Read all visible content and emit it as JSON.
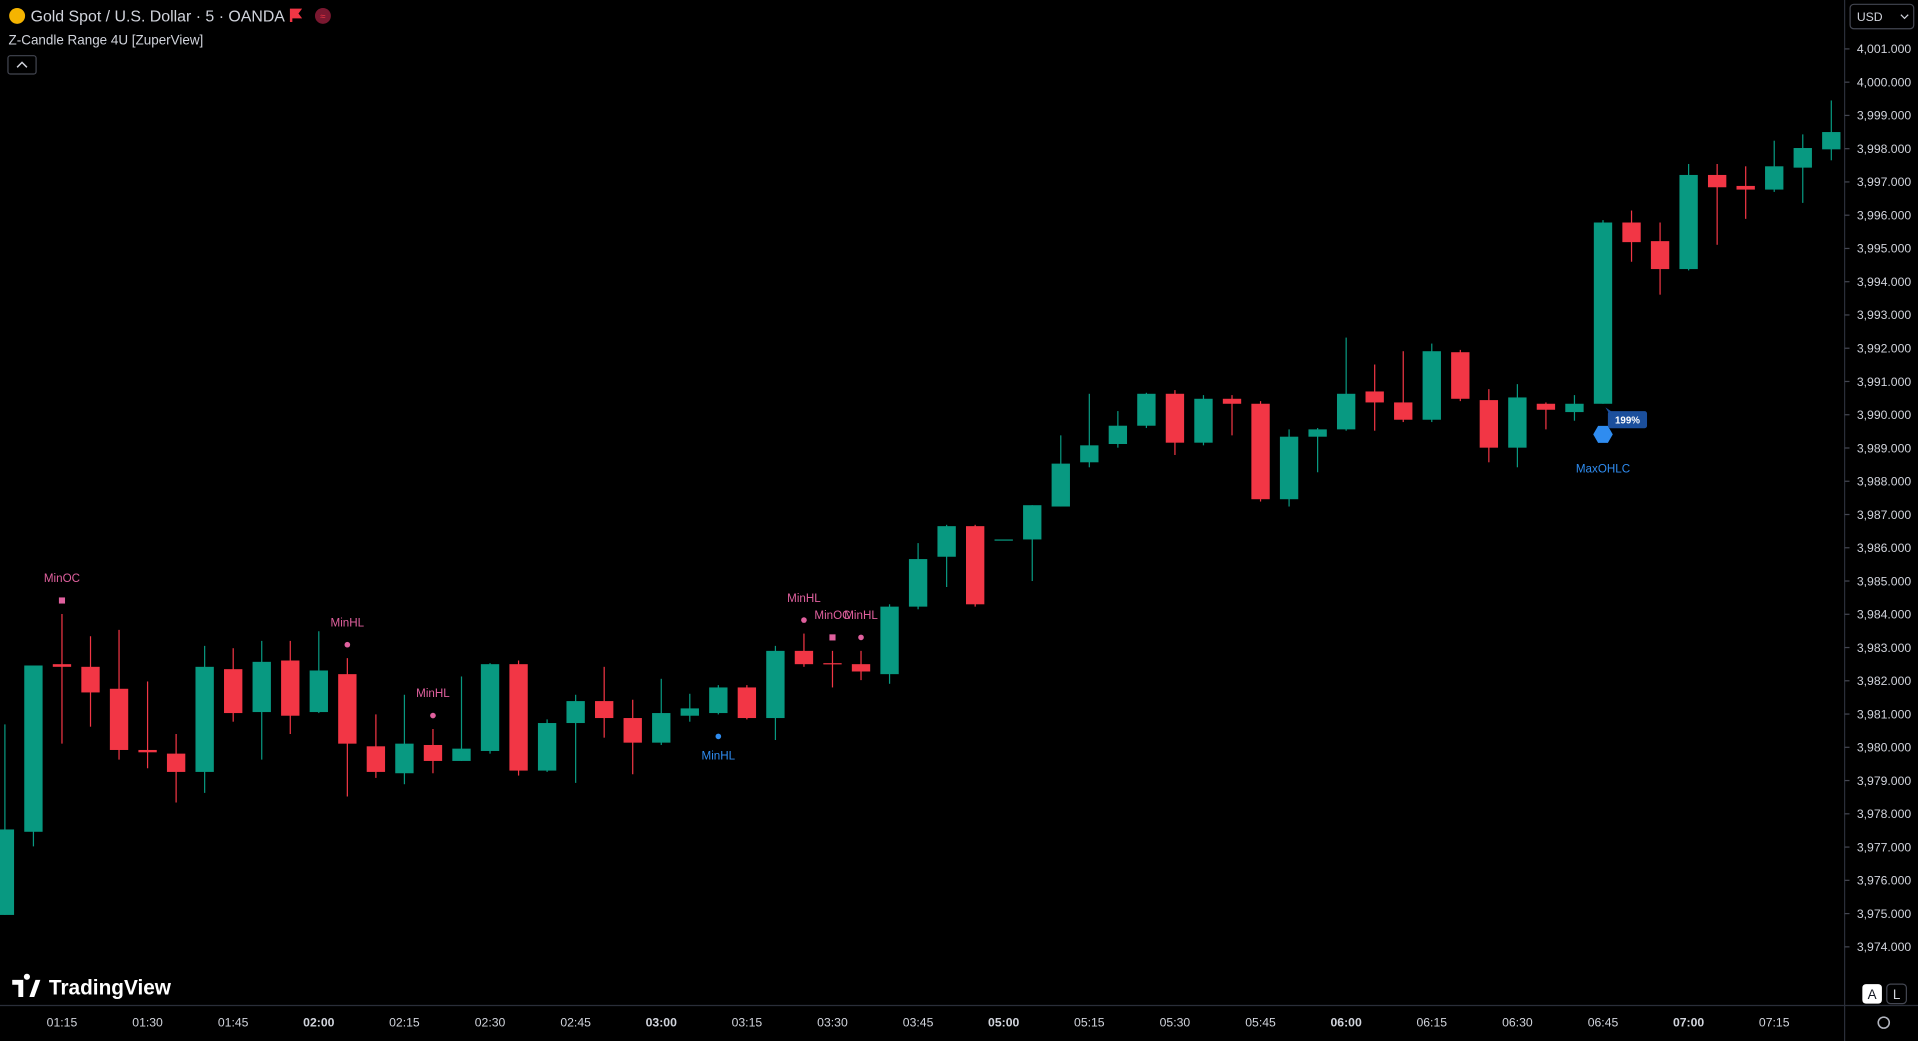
{
  "header": {
    "symbol": "Gold Spot / U.S. Dollar · 5 · OANDA",
    "indicator": "Z-Candle Range 4U [ZuperView]"
  },
  "controls": {
    "currency": "USD",
    "logo": "TradingView",
    "auto_button": "A",
    "log_button": "L"
  },
  "chart_data": {
    "type": "candlestick",
    "up_color": "#089981",
    "down_color": "#f23645",
    "grid": false,
    "categories": [
      null,
      null,
      "01:15",
      null,
      null,
      "01:30",
      null,
      null,
      "01:45",
      null,
      null,
      "02:00",
      null,
      null,
      "02:15",
      null,
      null,
      "02:30",
      null,
      null,
      "02:45",
      null,
      null,
      "03:00",
      null,
      null,
      "03:15",
      null,
      null,
      "03:30",
      null,
      null,
      "03:45",
      null,
      null,
      "05:00",
      null,
      null,
      "05:15",
      null,
      null,
      "05:30",
      null,
      null,
      "05:45",
      null,
      null,
      "06:00",
      null,
      null,
      "06:15",
      null,
      null,
      "06:30",
      null,
      null,
      "06:45",
      null,
      null,
      "07:00",
      null,
      null,
      "07:15",
      null,
      null
    ],
    "open": [
      3974.96,
      3977.46,
      3982.5,
      3982.42,
      3981.76,
      3979.92,
      3979.81,
      3979.26,
      3982.35,
      3981.06,
      3982.61,
      3981.06,
      3982.2,
      3980.03,
      3979.22,
      3980.07,
      3979.59,
      3979.89,
      3982.5,
      3979.3,
      3980.73,
      3981.39,
      3980.88,
      3980.14,
      3980.95,
      3981.03,
      3981.8,
      3980.88,
      3982.9,
      3982.53,
      3982.5,
      3982.2,
      3984.23,
      3985.73,
      3986.65,
      3986.25,
      3986.25,
      3987.24,
      3988.57,
      3989.12,
      3989.67,
      3990.63,
      3989.16,
      3990.48,
      3990.33,
      3987.46,
      3989.34,
      3989.56,
      3990.7,
      3990.37,
      3989.85,
      3991.88,
      3990.44,
      3989.01,
      3990.33,
      3990.08,
      3990.33,
      3995.78,
      3995.22,
      3994.38,
      3997.21,
      3996.88,
      3996.77,
      3997.43,
      3997.98
    ],
    "high": [
      3980.69,
      3982.46,
      3984.01,
      3983.34,
      3983.53,
      3981.98,
      3980.4,
      3983.05,
      3982.98,
      3983.2,
      3983.2,
      3983.49,
      3982.68,
      3980.99,
      3981.58,
      3980.55,
      3982.13,
      3982.53,
      3982.61,
      3980.84,
      3981.58,
      3982.42,
      3981.43,
      3982.06,
      3981.61,
      3981.87,
      3981.87,
      3983.05,
      3983.42,
      3982.9,
      3982.9,
      3984.3,
      3986.14,
      3986.69,
      3986.69,
      3986.25,
      3987.28,
      3989.38,
      3990.63,
      3990.11,
      3990.66,
      3990.74,
      3990.59,
      3990.59,
      3990.41,
      3989.56,
      3989.6,
      3992.32,
      3991.51,
      3991.91,
      3992.14,
      3991.95,
      3990.77,
      3990.92,
      3990.37,
      3990.59,
      3995.85,
      3996.14,
      3995.78,
      3997.54,
      3997.54,
      3997.47,
      3998.24,
      3998.43,
      3999.45
    ],
    "low": [
      3974.96,
      3977.02,
      3980.11,
      3980.62,
      3979.63,
      3979.37,
      3978.34,
      3978.63,
      3980.77,
      3979.63,
      3980.4,
      3981.03,
      3978.52,
      3979.08,
      3978.89,
      3979.22,
      3979.59,
      3979.81,
      3979.15,
      3979.26,
      3978.93,
      3980.29,
      3979.19,
      3980.07,
      3980.77,
      3980.99,
      3980.84,
      3980.22,
      3982.42,
      3981.8,
      3982.02,
      3981.91,
      3984.15,
      3984.82,
      3984.23,
      3986.25,
      3985.0,
      3987.24,
      3988.42,
      3989.01,
      3989.6,
      3988.79,
      3989.08,
      3989.38,
      3987.39,
      3987.24,
      3988.27,
      3989.52,
      3989.52,
      3989.78,
      3989.78,
      3990.41,
      3988.57,
      3988.42,
      3989.56,
      3989.82,
      3990.33,
      3994.6,
      3993.61,
      3994.34,
      3995.11,
      3995.89,
      3996.7,
      3996.37,
      3997.65
    ],
    "close": [
      3977.53,
      3982.46,
      3982.42,
      3981.65,
      3979.92,
      3979.85,
      3979.26,
      3982.42,
      3981.03,
      3982.57,
      3980.95,
      3982.31,
      3980.11,
      3979.26,
      3980.11,
      3979.59,
      3979.96,
      3982.5,
      3979.3,
      3980.73,
      3981.39,
      3980.88,
      3980.14,
      3981.03,
      3981.17,
      3981.8,
      3980.88,
      3982.9,
      3982.5,
      3982.5,
      3982.28,
      3984.23,
      3985.66,
      3986.65,
      3984.3,
      3986.25,
      3987.28,
      3988.53,
      3989.08,
      3989.67,
      3990.63,
      3989.16,
      3990.48,
      3990.33,
      3987.46,
      3989.34,
      3989.56,
      3990.63,
      3990.37,
      3989.85,
      3991.91,
      3990.48,
      3989.01,
      3990.52,
      3990.15,
      3990.33,
      3995.78,
      3995.19,
      3994.38,
      3997.21,
      3996.84,
      3996.77,
      3997.47,
      3998.02,
      3998.5
    ],
    "markers": [
      null,
      null,
      {
        "text": "MinOC",
        "color": "#e0609e",
        "shape": "square",
        "position": "above"
      },
      null,
      null,
      null,
      null,
      null,
      null,
      null,
      null,
      null,
      {
        "text": "MinHL",
        "color": "#e0609e",
        "shape": "circle",
        "position": "above"
      },
      null,
      null,
      {
        "text": "MinHL",
        "color": "#e0609e",
        "shape": "circle",
        "position": "above"
      },
      null,
      null,
      null,
      null,
      null,
      null,
      null,
      null,
      null,
      {
        "text": "MinHL",
        "color": "#2f8cf0",
        "shape": "circle",
        "position": "below"
      },
      null,
      null,
      {
        "text": "MinHL",
        "color": "#e0609e",
        "shape": "circle",
        "position": "above"
      },
      {
        "text": "MinOC",
        "color": "#e0609e",
        "shape": "square",
        "position": "above"
      },
      {
        "text": "MinHL",
        "color": "#e0609e",
        "shape": "circle",
        "position": "above"
      },
      null,
      null,
      null,
      null,
      null,
      null,
      null,
      null,
      null,
      null,
      null,
      null,
      null,
      null,
      null,
      null,
      null,
      null,
      null,
      null,
      null,
      null,
      null,
      null,
      null,
      {
        "text": "MaxOHLC",
        "color": "#2f8cf0",
        "shape": "hexagon",
        "position": "below",
        "badge": "199%"
      },
      null,
      null,
      null,
      null,
      null,
      null,
      null,
      null
    ],
    "ylim": [
      3972.31,
      4002.47
    ],
    "yticks": [
      {
        "value": 3974,
        "label": "3,974.000"
      },
      {
        "value": 3975,
        "label": "3,975.000"
      },
      {
        "value": 3976,
        "label": "3,976.000"
      },
      {
        "value": 3977,
        "label": "3,977.000"
      },
      {
        "value": 3978,
        "label": "3,978.000"
      },
      {
        "value": 3979,
        "label": "3,979.000"
      },
      {
        "value": 3980,
        "label": "3,980.000"
      },
      {
        "value": 3981,
        "label": "3,981.000"
      },
      {
        "value": 3982,
        "label": "3,982.000"
      },
      {
        "value": 3983,
        "label": "3,983.000"
      },
      {
        "value": 3984,
        "label": "3,984.000"
      },
      {
        "value": 3985,
        "label": "3,985.000"
      },
      {
        "value": 3986,
        "label": "3,986.000"
      },
      {
        "value": 3987,
        "label": "3,987.000"
      },
      {
        "value": 3988,
        "label": "3,988.000"
      },
      {
        "value": 3989,
        "label": "3,989.000"
      },
      {
        "value": 3990,
        "label": "3,990.000"
      },
      {
        "value": 3991,
        "label": "3,991.000"
      },
      {
        "value": 3992,
        "label": "3,992.000"
      },
      {
        "value": 3993,
        "label": "3,993.000"
      },
      {
        "value": 3994,
        "label": "3,994.000"
      },
      {
        "value": 3995,
        "label": "3,995.000"
      },
      {
        "value": 3996,
        "label": "3,996.000"
      },
      {
        "value": 3997,
        "label": "3,997.000"
      },
      {
        "value": 3998,
        "label": "3,998.000"
      },
      {
        "value": 3999,
        "label": "3,999.000"
      },
      {
        "value": 4000,
        "label": "4,000.000"
      },
      {
        "value": 4001,
        "label": "4,001.000"
      }
    ]
  }
}
